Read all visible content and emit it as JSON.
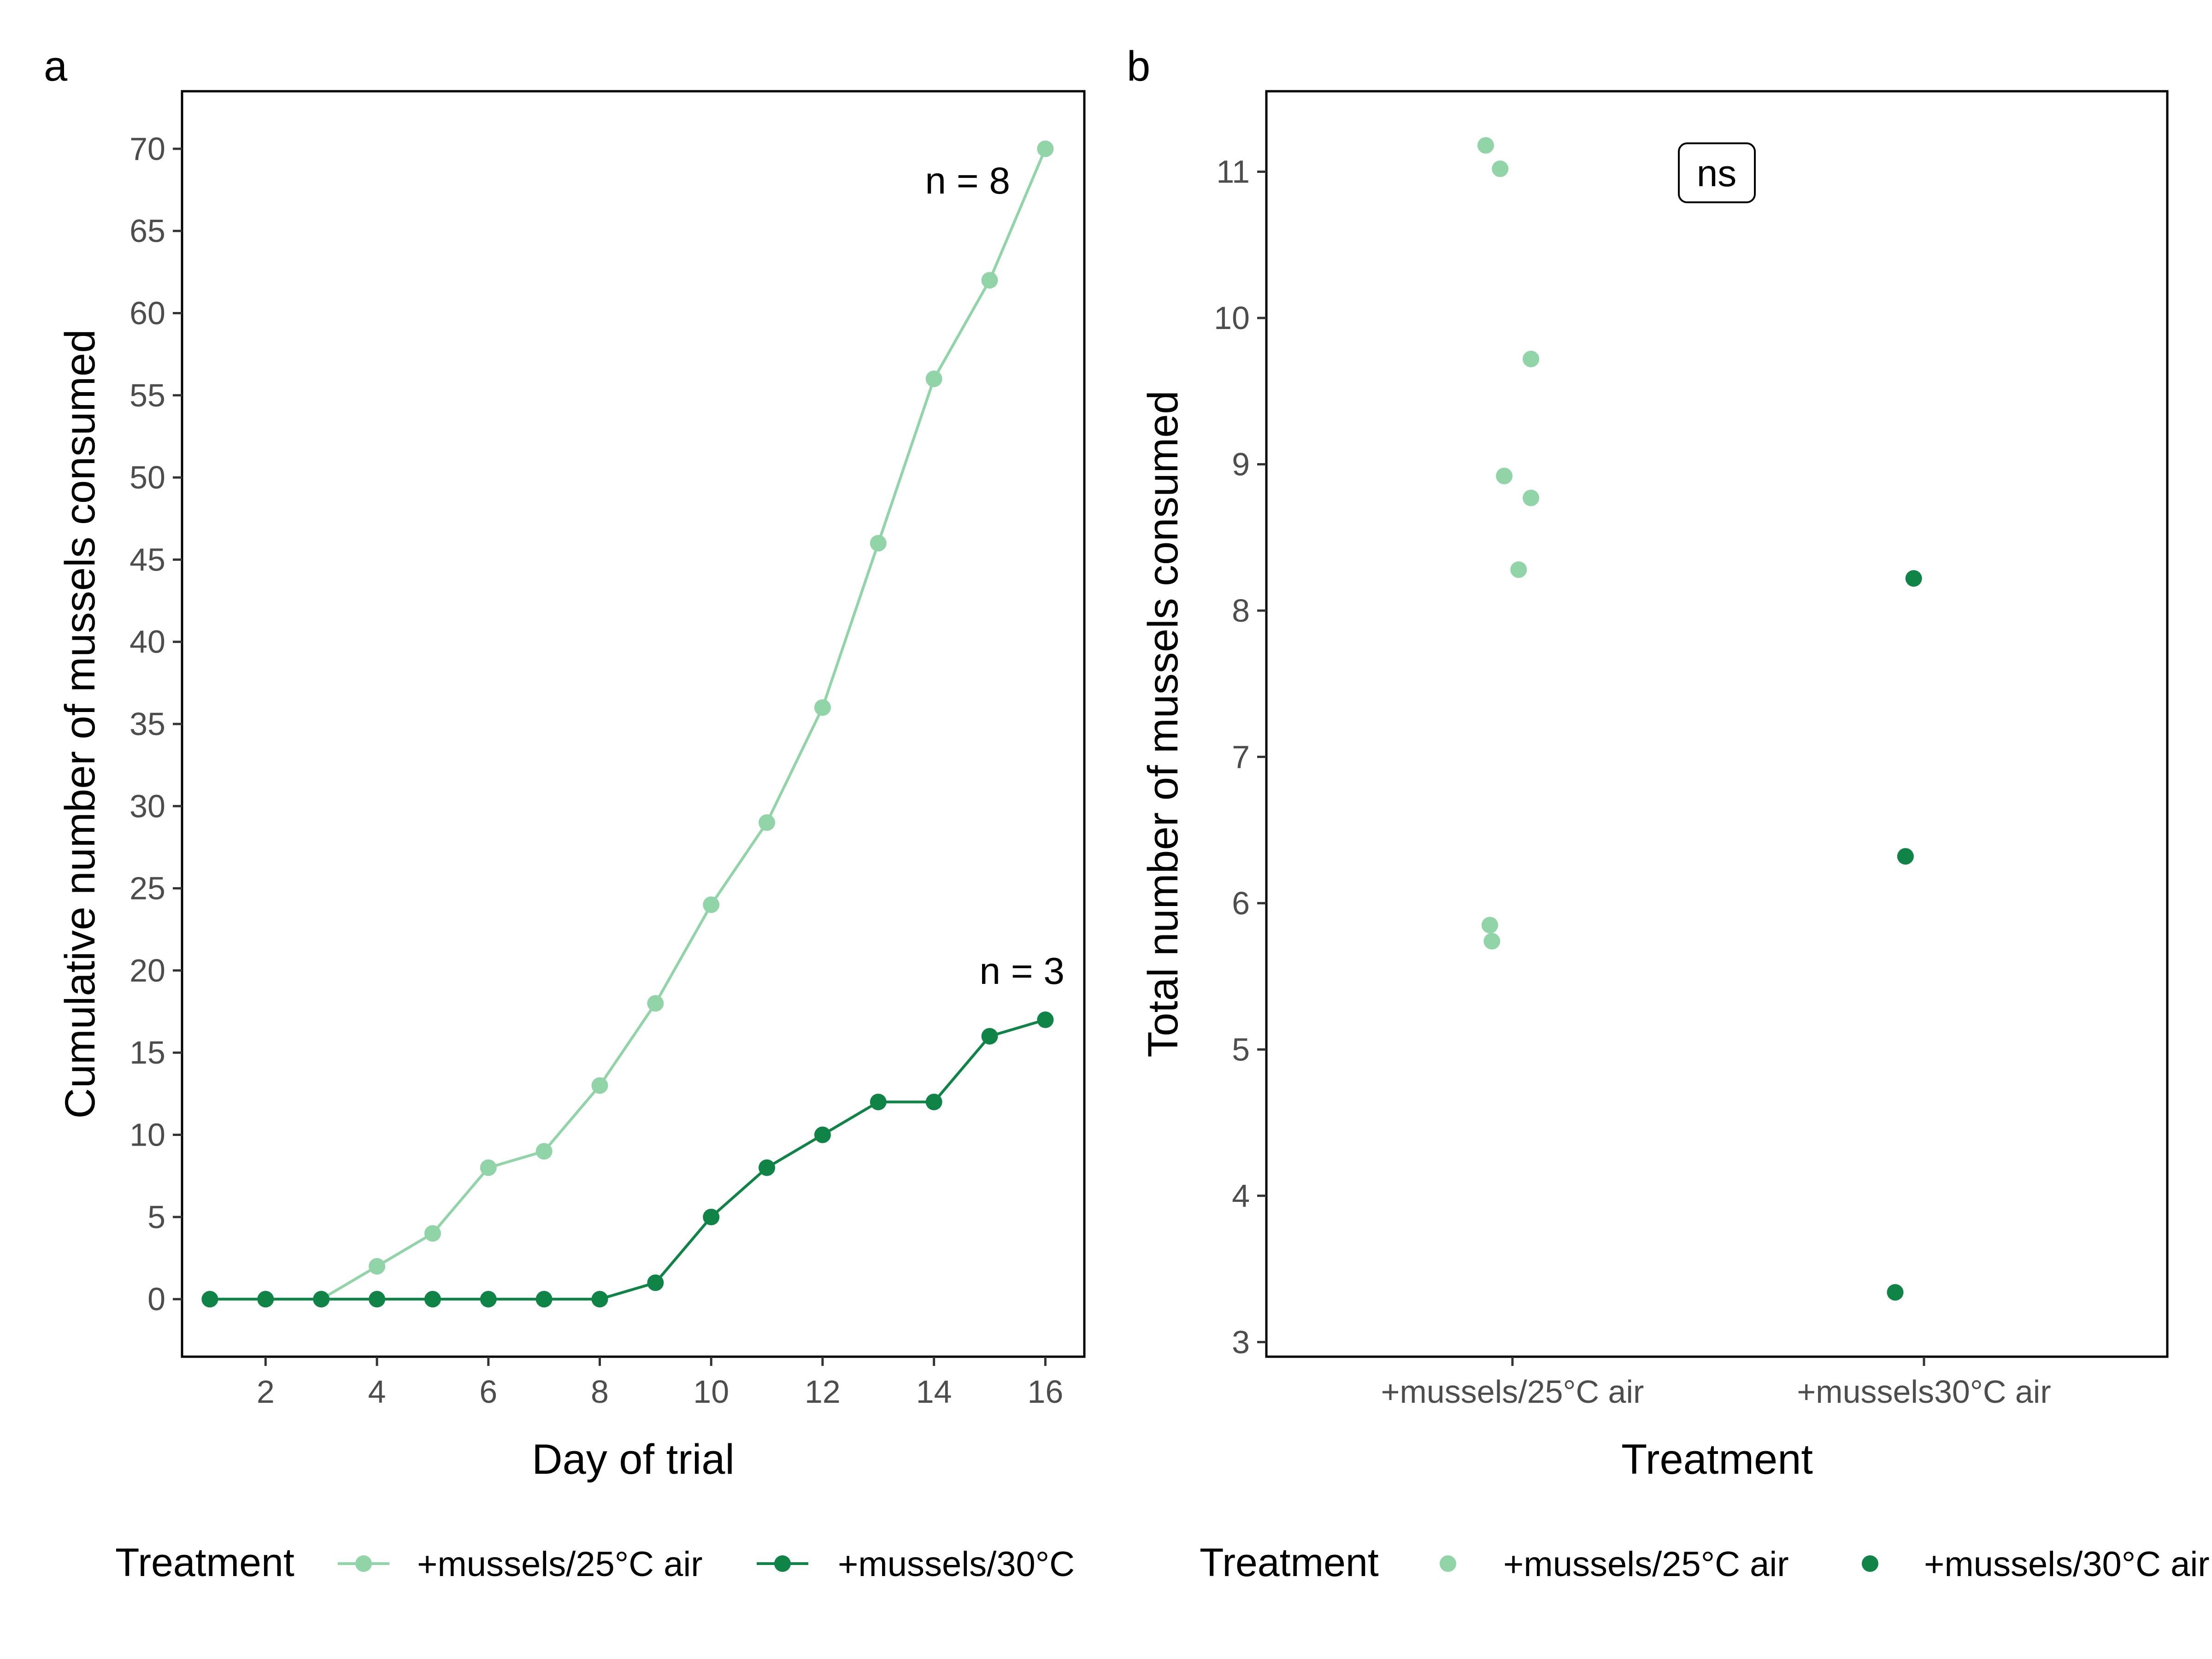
{
  "chart_data": [
    {
      "panel": "a",
      "type": "line",
      "xlabel": "Day of trial",
      "ylabel": "Cumulative number of mussels consumed",
      "xlim": [
        0.5,
        16.7
      ],
      "ylim": [
        -3.5,
        73.5
      ],
      "x_ticks": [
        2,
        4,
        6,
        8,
        10,
        12,
        14,
        16
      ],
      "y_ticks": [
        0,
        5,
        10,
        15,
        20,
        25,
        30,
        35,
        40,
        45,
        50,
        55,
        60,
        65,
        70
      ],
      "x": [
        1,
        2,
        3,
        4,
        5,
        6,
        7,
        8,
        9,
        10,
        11,
        12,
        13,
        14,
        15,
        16
      ],
      "series": [
        {
          "name": "+mussels/25°C air",
          "color": "#91d4a7",
          "values": [
            0,
            0,
            0,
            2,
            4,
            8,
            9,
            13,
            18,
            24,
            29,
            36,
            46,
            56,
            62,
            70
          ]
        },
        {
          "name": "+mussels/30°C",
          "color": "#0f8446",
          "values": [
            0,
            0,
            0,
            0,
            0,
            0,
            0,
            0,
            1,
            5,
            8,
            10,
            12,
            12,
            16,
            17
          ]
        }
      ],
      "annotations": [
        {
          "text": "n = 8",
          "x": 16,
          "y": 70,
          "series": 0
        },
        {
          "text": "n = 3",
          "x": 16,
          "y": 17,
          "series": 1
        }
      ],
      "legend": {
        "title": "Treatment",
        "position": "bottom",
        "entries": [
          "+mussels/25°C air",
          "+mussels/30°C"
        ]
      },
      "grid": false
    },
    {
      "panel": "b",
      "type": "scatter",
      "xlabel": "Treatment",
      "ylabel": "Total number of mussels consumed",
      "categories": [
        "+mussels/25°C air",
        "+mussels30°C air"
      ],
      "ylim": [
        2.9,
        11.55
      ],
      "y_ticks": [
        3,
        4,
        5,
        6,
        7,
        8,
        9,
        10,
        11
      ],
      "series": [
        {
          "name": "+mussels/25°C air",
          "color": "#91d4a7",
          "points": [
            {
              "category": 0,
              "jitter": -0.13,
              "y": 11.18
            },
            {
              "category": 0,
              "jitter": -0.06,
              "y": 11.02
            },
            {
              "category": 0,
              "jitter": 0.09,
              "y": 9.72
            },
            {
              "category": 0,
              "jitter": -0.04,
              "y": 8.92
            },
            {
              "category": 0,
              "jitter": 0.09,
              "y": 8.77
            },
            {
              "category": 0,
              "jitter": 0.03,
              "y": 8.28
            },
            {
              "category": 0,
              "jitter": -0.11,
              "y": 5.85
            },
            {
              "category": 0,
              "jitter": -0.1,
              "y": 5.74
            }
          ]
        },
        {
          "name": "+mussels/30°C air",
          "color": "#0f8446",
          "points": [
            {
              "category": 1,
              "jitter": -0.05,
              "y": 8.22
            },
            {
              "category": 1,
              "jitter": -0.09,
              "y": 6.32
            },
            {
              "category": 1,
              "jitter": -0.14,
              "y": 3.34
            }
          ]
        }
      ],
      "annotation": "ns",
      "legend": {
        "title": "Treatment",
        "position": "bottom",
        "entries": [
          "+mussels/25°C air",
          "+mussels/30°C air"
        ]
      },
      "grid": false
    }
  ]
}
